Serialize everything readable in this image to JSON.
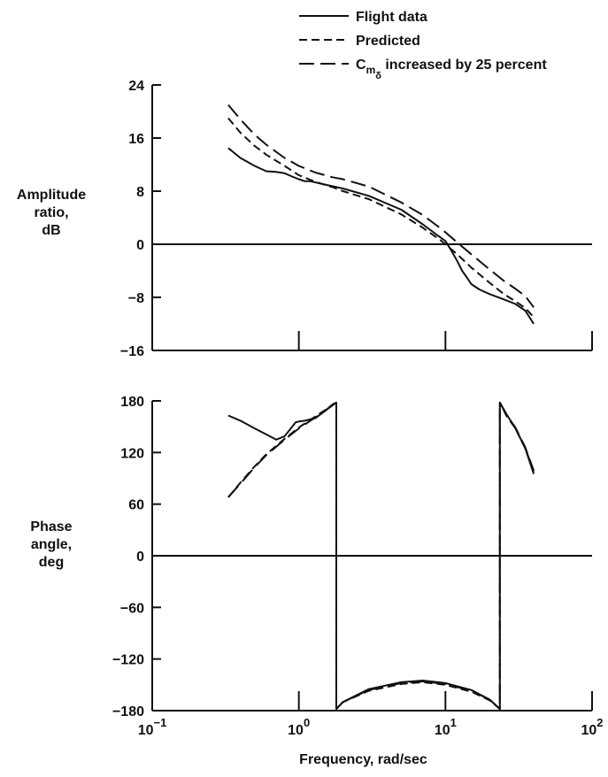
{
  "chart_data": [
    {
      "type": "line",
      "xscale": "log",
      "xlim": [
        0.1,
        100
      ],
      "ylim": [
        -16,
        24
      ],
      "yticks": [
        24,
        16,
        8,
        0,
        -8,
        -16
      ],
      "ylabel_lines": [
        "Amplitude",
        "ratio,",
        "dB"
      ],
      "series": [
        {
          "name": "Flight data",
          "style": "solid",
          "x": [
            0.33,
            0.4,
            0.5,
            0.6,
            0.7,
            0.8,
            0.9,
            1.0,
            1.1,
            1.2,
            1.5,
            2.0,
            3.0,
            5.0,
            7.0,
            9.0,
            10.0,
            11.0,
            12.0,
            13.0,
            14.0,
            15.0,
            17.0,
            20.0,
            25.0,
            30.0,
            35.0,
            40.0
          ],
          "y": [
            14.5,
            13.0,
            11.8,
            11.0,
            10.9,
            10.7,
            10.2,
            9.8,
            9.5,
            9.5,
            9.0,
            8.4,
            7.3,
            5.2,
            3.0,
            1.2,
            0.5,
            -1.0,
            -2.5,
            -4.0,
            -5.0,
            -6.0,
            -6.8,
            -7.5,
            -8.3,
            -9.0,
            -10.0,
            -12.0
          ]
        },
        {
          "name": "Predicted",
          "style": "dashed",
          "x": [
            0.33,
            0.4,
            0.5,
            0.6,
            0.8,
            1.0,
            1.3,
            1.7,
            2.0,
            3.0,
            5.0,
            7.0,
            9.0,
            10.0,
            12.0,
            15.0,
            20.0,
            25.0,
            30.0,
            35.0,
            40.0
          ],
          "y": [
            19.0,
            16.8,
            14.8,
            13.5,
            11.8,
            10.4,
            9.4,
            8.6,
            8.0,
            6.8,
            4.5,
            2.5,
            0.8,
            0.0,
            -1.5,
            -3.5,
            -5.8,
            -7.5,
            -8.6,
            -9.6,
            -11.0
          ]
        },
        {
          "name": "C_mδ increased by 25 percent",
          "style": "longdash",
          "x": [
            0.33,
            0.4,
            0.5,
            0.6,
            0.8,
            1.0,
            1.3,
            1.7,
            2.0,
            3.0,
            5.0,
            7.0,
            9.0,
            10.0,
            12.0,
            15.0,
            20.0,
            25.0,
            30.0,
            35.0,
            40.0
          ],
          "y": [
            21.0,
            18.8,
            16.5,
            15.0,
            13.0,
            11.8,
            10.8,
            10.1,
            9.8,
            8.7,
            6.3,
            4.4,
            2.6,
            1.8,
            0.3,
            -1.5,
            -3.8,
            -5.5,
            -6.7,
            -7.8,
            -9.5
          ]
        }
      ]
    },
    {
      "type": "line",
      "xscale": "log",
      "xlim": [
        0.1,
        100
      ],
      "ylim": [
        -180,
        180
      ],
      "yticks": [
        180,
        120,
        60,
        0,
        -60,
        -120,
        -180
      ],
      "xticks": [
        0.1,
        1,
        10,
        100
      ],
      "xtick_labels": [
        {
          "base": "10",
          "exp": "−1"
        },
        {
          "base": "10",
          "exp": "0"
        },
        {
          "base": "10",
          "exp": "1"
        },
        {
          "base": "10",
          "exp": "2"
        }
      ],
      "xlabel": "Frequency, rad/sec",
      "ylabel_lines": [
        "Phase",
        "angle,",
        "deg"
      ],
      "series": [
        {
          "name": "Flight data",
          "style": "solid",
          "x": [
            0.33,
            0.4,
            0.5,
            0.6,
            0.7,
            0.8,
            0.9,
            0.95,
            1.0,
            1.1,
            1.3,
            1.5,
            1.7,
            1.8,
            1.8,
            2.0,
            3.0,
            5.0,
            7.0,
            10.0,
            15.0,
            20.0,
            23.5,
            23.5,
            26.0,
            30.0,
            35.0,
            40.0
          ],
          "y": [
            163,
            157,
            148,
            141,
            135,
            139,
            150,
            155,
            156,
            157,
            160,
            168,
            176,
            178,
            -178,
            -170,
            -155,
            -147,
            -145,
            -148,
            -156,
            -167,
            -178,
            178,
            165,
            148,
            125,
            95
          ]
        },
        {
          "name": "Predicted",
          "style": "dashed",
          "x": [
            0.33,
            0.4,
            0.5,
            0.6,
            0.8,
            1.0,
            1.3,
            1.5,
            1.7,
            1.8,
            1.8,
            2.0,
            3.0,
            5.0,
            7.0,
            10.0,
            15.0,
            20.0,
            23.5,
            23.5,
            26.0,
            30.0,
            35.0,
            40.0
          ],
          "y": [
            68,
            85,
            104,
            118,
            136,
            149,
            162,
            169,
            175,
            178,
            -178,
            -170,
            -157,
            -149,
            -147,
            -150,
            -158,
            -168,
            -178,
            178,
            163,
            148,
            125,
            98
          ]
        },
        {
          "name": "C_mδ increased by 25 percent",
          "style": "longdash",
          "x": [
            0.33,
            0.4,
            0.5,
            0.6,
            0.8,
            1.0,
            1.3,
            1.5,
            1.7,
            1.8,
            1.8,
            2.0,
            3.0,
            5.0,
            7.0,
            10.0,
            15.0,
            20.0,
            23.5,
            23.5,
            26.0,
            30.0,
            35.0,
            40.0
          ],
          "y": [
            68,
            84,
            103,
            117,
            135,
            148,
            161,
            168,
            175,
            178,
            -178,
            -170,
            -156,
            -148,
            -146,
            -149,
            -157,
            -167,
            -178,
            178,
            164,
            149,
            126,
            99
          ]
        }
      ]
    }
  ],
  "legend": [
    {
      "label": "Flight data",
      "style": "solid"
    },
    {
      "label": "Predicted",
      "style": "dashed"
    },
    {
      "label_main": "C",
      "label_sub": "m",
      "label_subsub": "δ",
      "label_rest": " increased by 25 percent",
      "style": "longdash"
    }
  ]
}
